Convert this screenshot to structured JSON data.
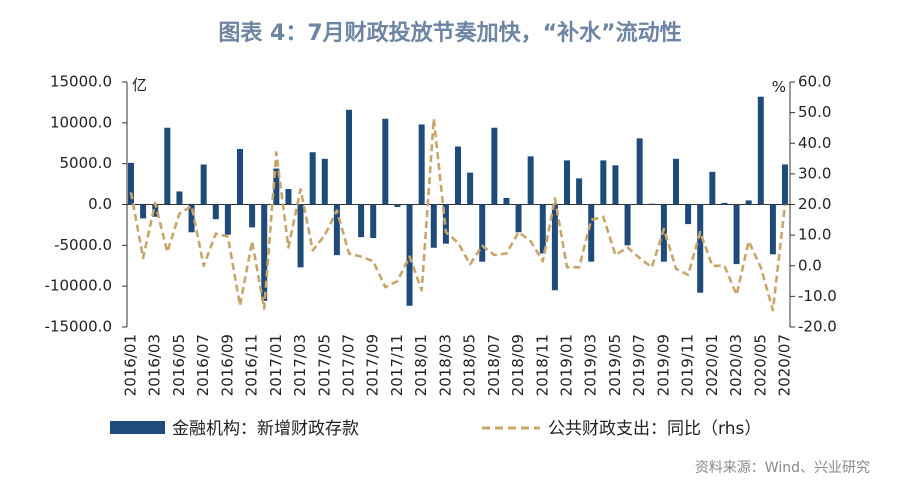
{
  "colors": {
    "title": "#6e84a3",
    "bar": "#1f4b7a",
    "line": "#c9a56a",
    "axis": "#333333"
  },
  "source": "资料来源：Wind、兴业研究",
  "chart_data": {
    "type": "bar",
    "title": "图表 4：7月财政投放节奏加快，“补水”流动性",
    "legend": "bottom",
    "x_tick_every_months": 2,
    "x_tick_labels": [
      "2016/01",
      "2016/03",
      "2016/05",
      "2016/07",
      "2016/09",
      "2016/11",
      "2017/01",
      "2017/03",
      "2017/05",
      "2017/07",
      "2017/09",
      "2017/11",
      "2018/01",
      "2018/03",
      "2018/05",
      "2018/07",
      "2018/09",
      "2018/11",
      "2019/01",
      "2019/03",
      "2019/05",
      "2019/07",
      "2019/09",
      "2019/11",
      "2020/01",
      "2020/03",
      "2020/05",
      "2020/07"
    ],
    "y_left": {
      "unit": "亿",
      "min": -15000,
      "max": 15000,
      "ticks": [
        "15000.0",
        "10000.0",
        "5000.0",
        "0.0",
        "-5000.0",
        "-10000.0",
        "-15000.0"
      ]
    },
    "y_right": {
      "unit": "%",
      "min": -20,
      "max": 60,
      "ticks": [
        "60.0",
        "50.0",
        "40.0",
        "30.0",
        "20.0",
        "10.0",
        "0.0",
        "-10.0",
        "-20.0"
      ]
    },
    "series": [
      {
        "name": "金融机构：新增财政存款",
        "type": "bar",
        "right_axis": false,
        "values": [
          5100,
          -1700,
          -1500,
          9400,
          1600,
          -3400,
          4900,
          -1800,
          -3700,
          6800,
          -2800,
          -11800,
          4400,
          1900,
          -7700,
          6400,
          5600,
          -6200,
          11600,
          -4000,
          -4100,
          10500,
          -300,
          -12400,
          9800,
          -5300,
          -4800,
          7100,
          3900,
          -7000,
          9400,
          800,
          -3400,
          5900,
          -6000,
          -10500,
          5400,
          3200,
          -7000,
          5400,
          4800,
          -5000,
          8100,
          100,
          -7000,
          5600,
          -2400,
          -10800,
          4000,
          200,
          -7300,
          500,
          13200,
          -6100,
          4900
        ]
      },
      {
        "name": "公共财政支出：同比（rhs）",
        "type": "line",
        "right_axis": true,
        "values": [
          24,
          2.5,
          20.5,
          4.5,
          17,
          19.5,
          0,
          10.5,
          9.5,
          -13,
          8,
          -14,
          37,
          6,
          25,
          5,
          10,
          18,
          4,
          3,
          1.5,
          -7,
          -5,
          3,
          -8,
          48,
          11,
          7.5,
          0.5,
          6.5,
          3.5,
          4,
          11,
          8,
          1.5,
          22,
          -0.5,
          -0.5,
          15,
          16,
          3.5,
          6,
          2.5,
          -0.5,
          12,
          -1,
          -3,
          11,
          0,
          0,
          -9.5,
          8,
          -0.5,
          -14.5,
          20
        ]
      }
    ]
  }
}
